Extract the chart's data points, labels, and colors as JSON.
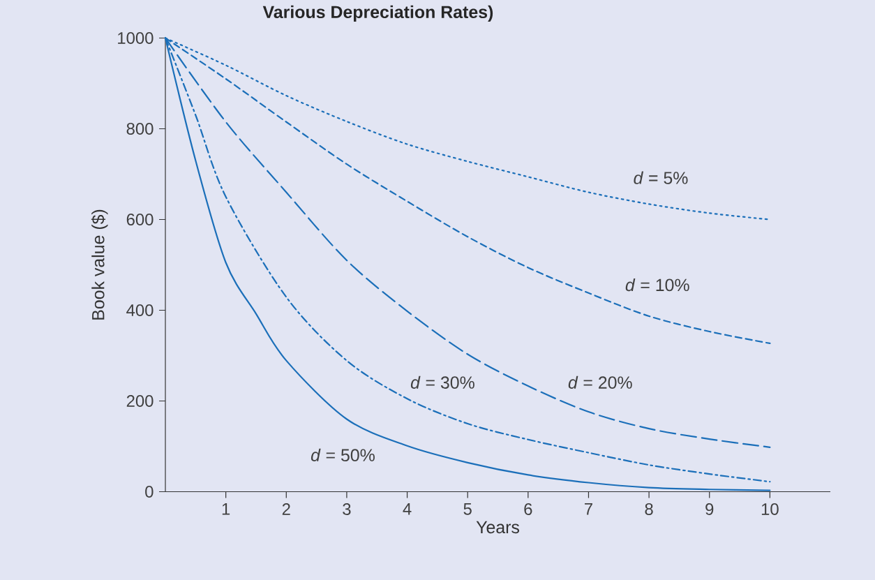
{
  "chart_data": {
    "type": "line",
    "title": "Various Depreciation Rates)",
    "xlabel": "Years",
    "ylabel": "Book value ($)",
    "x": [
      0,
      1,
      2,
      3,
      4,
      5,
      6,
      7,
      8,
      9,
      10
    ],
    "series": [
      {
        "name": "*d* = 5%",
        "color": "#1b6fb9",
        "line_style": "dotted",
        "values": [
          1000,
          940,
          873,
          816,
          766,
          728,
          694,
          660,
          634,
          614,
          600
        ]
      },
      {
        "name": "*d* = 10%",
        "color": "#1b6fb9",
        "line_style": "dashed",
        "values": [
          1000,
          910,
          815,
          722,
          640,
          562,
          494,
          438,
          387,
          353,
          327
        ]
      },
      {
        "name": "*d* = 20%",
        "color": "#1b6fb9",
        "line_style": "longdashed",
        "values": [
          1000,
          815,
          660,
          510,
          398,
          303,
          233,
          176,
          139,
          116,
          98
        ]
      },
      {
        "name": "*d* = 30%",
        "color": "#1b6fb9",
        "line_style": "dashdot",
        "x": [
          0,
          0.5,
          1,
          2,
          3,
          4,
          5,
          6,
          7,
          8,
          9,
          10
        ],
        "values": [
          1000,
          830,
          650,
          429,
          289,
          205,
          150,
          115,
          86,
          59,
          39,
          22
        ]
      },
      {
        "name": "*d* = 50%",
        "color": "#1b6fb9",
        "line_style": "solid",
        "x": [
          0,
          0.5,
          1,
          1.5,
          2,
          3,
          4,
          5,
          6,
          7,
          8,
          9,
          10
        ],
        "values": [
          1000,
          730,
          505,
          392,
          289,
          160,
          101,
          64,
          37,
          20,
          9,
          5,
          3
        ]
      }
    ],
    "xlim": [
      0,
      11
    ],
    "ylim": [
      0,
      1000
    ],
    "xticks": [
      1,
      2,
      3,
      4,
      5,
      6,
      7,
      8,
      9,
      10
    ],
    "yticks": [
      0,
      200,
      400,
      600,
      800,
      1000
    ],
    "grid": false,
    "legend": false,
    "marker": "none"
  }
}
